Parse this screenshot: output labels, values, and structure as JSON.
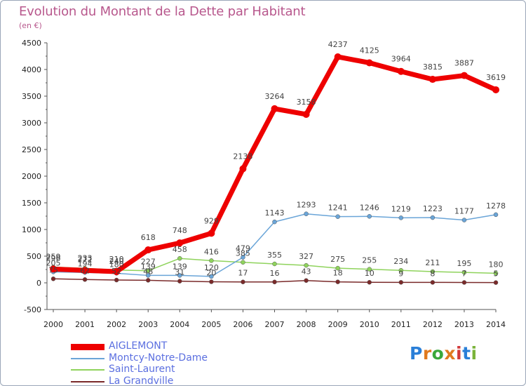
{
  "title": "Evolution du Montant de la Dette par Habitant",
  "unit_label": "(en €)",
  "brand": {
    "text": "Proxiti",
    "letters": [
      "P",
      "r",
      "o",
      "x",
      "i",
      "t",
      "i"
    ],
    "colors": [
      "#2a7fd8",
      "#e07a1f",
      "#3aa83a",
      "#e07a1f",
      "#d23a3a",
      "#2a7fd8",
      "#7ab33a"
    ]
  },
  "chart_data": {
    "type": "line",
    "title": "Evolution du Montant de la Dette par Habitant",
    "ylabel": "(en €)",
    "xlabel": "",
    "ylim": [
      -500,
      4500
    ],
    "yticks": [
      -500,
      0,
      500,
      1000,
      1500,
      2000,
      2500,
      3000,
      3500,
      4000,
      4500
    ],
    "categories": [
      "2000",
      "2001",
      "2002",
      "2003",
      "2004",
      "2005",
      "2006",
      "2007",
      "2008",
      "2009",
      "2010",
      "2011",
      "2012",
      "2013",
      "2014"
    ],
    "grid": false,
    "legend_position": "bottom-left",
    "series": [
      {
        "name": "AIGLEMONT",
        "color": "#ee0000",
        "values": [
          259,
          233,
          210,
          618,
          748,
          929,
          2138,
          3264,
          3158,
          4237,
          4125,
          3964,
          3815,
          3887,
          3619
        ],
        "labels": [
          "259",
          "233",
          "210",
          "618",
          "748",
          "929",
          "2138",
          "3264",
          "3158",
          "4237",
          "4125",
          "3964",
          "3815",
          "3887",
          "3619"
        ]
      },
      {
        "name": "Montcy-Notre-Dame",
        "color": "#6aa5d8",
        "values": [
          205,
          194,
          180,
          139,
          139,
          120,
          479,
          1143,
          1293,
          1241,
          1246,
          1219,
          1223,
          1177,
          1278
        ],
        "labels": [
          "205",
          "194",
          "180",
          "139",
          "139",
          "120",
          "479",
          "1143",
          "1293",
          "1241",
          "1246",
          "1219",
          "1223",
          "1177",
          "1278"
        ]
      },
      {
        "name": "Saint-Laurent",
        "color": "#8fd35c",
        "values": [
          296,
          272,
          240,
          227,
          458,
          416,
          385,
          355,
          327,
          275,
          255,
          234,
          211,
          195,
          180
        ],
        "labels": [
          "296",
          "272",
          "240",
          "227",
          "458",
          "416",
          "385",
          "355",
          "327",
          "275",
          "255",
          "234",
          "211",
          "195",
          "180"
        ]
      },
      {
        "name": "La Grandville",
        "color": "#7a2a2a",
        "values": [
          75,
          62,
          52,
          48,
          31,
          20,
          17,
          16,
          43,
          18,
          10,
          9,
          8,
          7,
          5
        ],
        "labels": [
          "75",
          "62",
          "52",
          "48",
          "31",
          "20",
          "17",
          "16",
          "43",
          "18",
          "10",
          "9",
          "8",
          "7",
          "5"
        ]
      }
    ]
  }
}
